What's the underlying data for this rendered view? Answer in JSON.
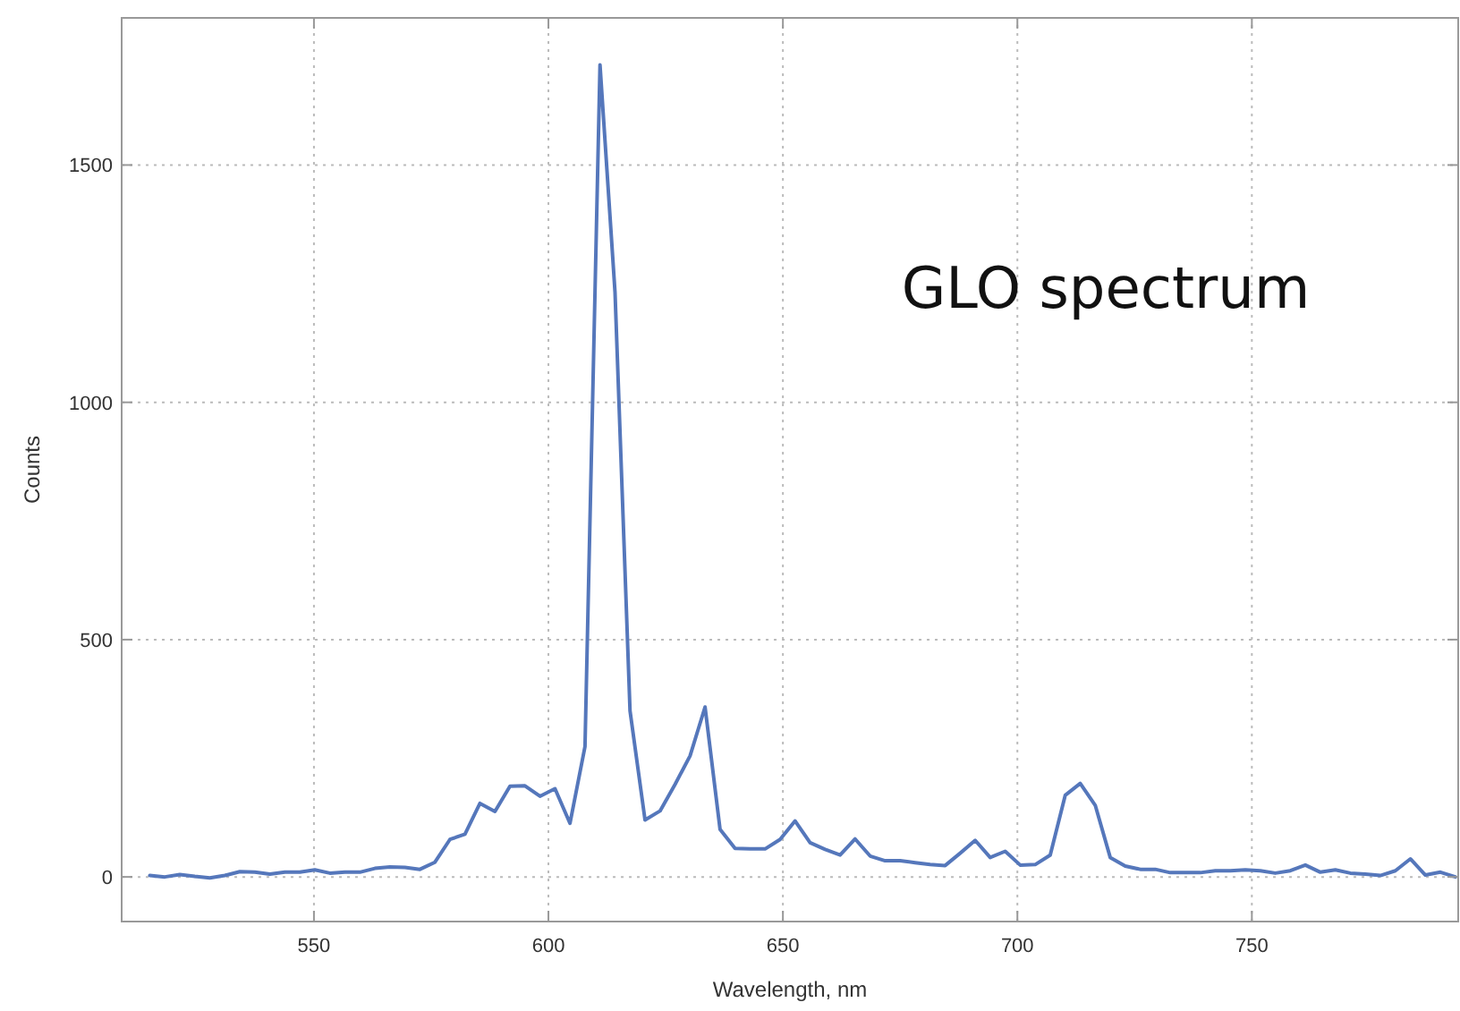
{
  "chart_data": {
    "type": "line",
    "xlabel": "Wavelength, nm",
    "ylabel": "Counts",
    "annotations": [
      "GLO spectrum"
    ],
    "xlim": [
      509,
      794
    ],
    "ylim": [
      -94,
      1810
    ],
    "xticks": [
      550,
      600,
      650,
      700,
      750
    ],
    "yticks": [
      0,
      500,
      1000,
      1500
    ],
    "grid": true,
    "marker": "none",
    "line_style": "solid",
    "series": [
      {
        "color": "#5577bb",
        "x": [
          515,
          518.2,
          521.4,
          524.6,
          527.8,
          531,
          534.2,
          537.4,
          540.6,
          543.8,
          547,
          550.2,
          553.4,
          556.6,
          559.8,
          563,
          566.2,
          569.4,
          572.6,
          575.8,
          579,
          582.2,
          585.4,
          588.6,
          591.8,
          595,
          598.2,
          601.4,
          604.6,
          607.8,
          611,
          614.2,
          617.4,
          620.6,
          623.8,
          627,
          630.2,
          633.4,
          636.6,
          639.8,
          643,
          646.2,
          649.4,
          652.6,
          655.8,
          659,
          662.2,
          665.4,
          668.6,
          671.8,
          675,
          678.2,
          681.4,
          684.6,
          687.8,
          691,
          694.2,
          697.4,
          700.6,
          703.8,
          707,
          710.2,
          713.4,
          716.6,
          719.8,
          723,
          726.2,
          729.4,
          732.6,
          735.8,
          739,
          742.2,
          745.4,
          748.6,
          751.8,
          755,
          758.2,
          761.4,
          764.6,
          767.8,
          771,
          774.2,
          777.4,
          780.6,
          783.8,
          787,
          790.2,
          793.4
        ],
        "values": [
          3,
          0,
          5,
          1,
          -2,
          3,
          11,
          10,
          6,
          10,
          10,
          15,
          8,
          10,
          10,
          18,
          21,
          20,
          16,
          31,
          79,
          90,
          155,
          138,
          191,
          192,
          170,
          186,
          113,
          275,
          1711,
          1232,
          350,
          120,
          139,
          195,
          255,
          358,
          100,
          60,
          59,
          59,
          79,
          118,
          72,
          58,
          46,
          80,
          44,
          34,
          34,
          30,
          26,
          24,
          50,
          77,
          41,
          54,
          25,
          26,
          46,
          172,
          197,
          151,
          41,
          23,
          16,
          16,
          9,
          9,
          9,
          13,
          13,
          15,
          13,
          8,
          13,
          25,
          10,
          15,
          8,
          6,
          3,
          13,
          38,
          4,
          10,
          0
        ]
      }
    ]
  }
}
